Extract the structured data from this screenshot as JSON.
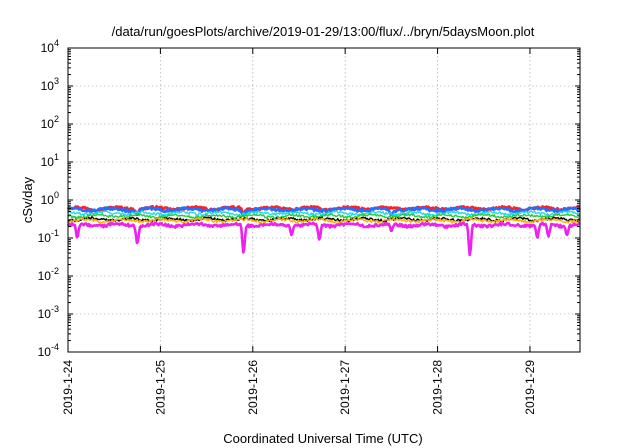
{
  "chart_data": {
    "type": "line",
    "title": "/data/run/goesPlots/archive/2019-01-29/13:00/flux/../bryn/5daysMoon.plot",
    "xlabel": "Coordinated Universal Time (UTC)",
    "ylabel": "cSv/day",
    "yscale": "log",
    "ylim": [
      0.0001,
      10000
    ],
    "xlim": [
      "2019-01-24",
      "2019-01-29 13:00"
    ],
    "grid": true,
    "xticks": [
      "2019-1-24",
      "2019-1-25",
      "2019-1-26",
      "2019-1-27",
      "2019-1-28",
      "2019-1-29"
    ],
    "yticks": [
      {
        "base": "10",
        "exp": "4"
      },
      {
        "base": "10",
        "exp": "3"
      },
      {
        "base": "10",
        "exp": "2"
      },
      {
        "base": "10",
        "exp": "1"
      },
      {
        "base": "10",
        "exp": "0"
      },
      {
        "base": "10",
        "exp": "-1"
      },
      {
        "base": "10",
        "exp": "-2"
      },
      {
        "base": "10",
        "exp": "-3"
      },
      {
        "base": "10",
        "exp": "-4"
      }
    ],
    "series": [
      {
        "color": "#ff2020",
        "base": 0.6,
        "dips": [
          {
            "day": 0.75,
            "value": 0.45
          },
          {
            "day": 1.9,
            "value": 0.42
          }
        ]
      },
      {
        "color": "#2a6cff",
        "base": 0.56,
        "dips": [
          {
            "day": 0.75,
            "value": 0.4
          },
          {
            "day": 1.9,
            "value": 0.38
          },
          {
            "day": 3.5,
            "value": 0.4
          }
        ]
      },
      {
        "color": "#22dddd",
        "base": 0.45,
        "dips": []
      },
      {
        "color": "#22cc44",
        "base": 0.38,
        "dips": []
      },
      {
        "color": "#000000",
        "base": 0.31,
        "dips": []
      },
      {
        "color": "#ffaa00",
        "base": 0.29,
        "dips": []
      },
      {
        "color": "#ee22ee",
        "base": 0.22,
        "dips": [
          {
            "day": 0.1,
            "value": 0.1
          },
          {
            "day": 0.75,
            "value": 0.07
          },
          {
            "day": 1.9,
            "value": 0.04
          },
          {
            "day": 2.42,
            "value": 0.12
          },
          {
            "day": 2.72,
            "value": 0.09
          },
          {
            "day": 3.5,
            "value": 0.15
          },
          {
            "day": 4.35,
            "value": 0.035
          },
          {
            "day": 5.08,
            "value": 0.1
          },
          {
            "day": 5.2,
            "value": 0.11
          },
          {
            "day": 5.4,
            "value": 0.12
          }
        ]
      }
    ]
  }
}
